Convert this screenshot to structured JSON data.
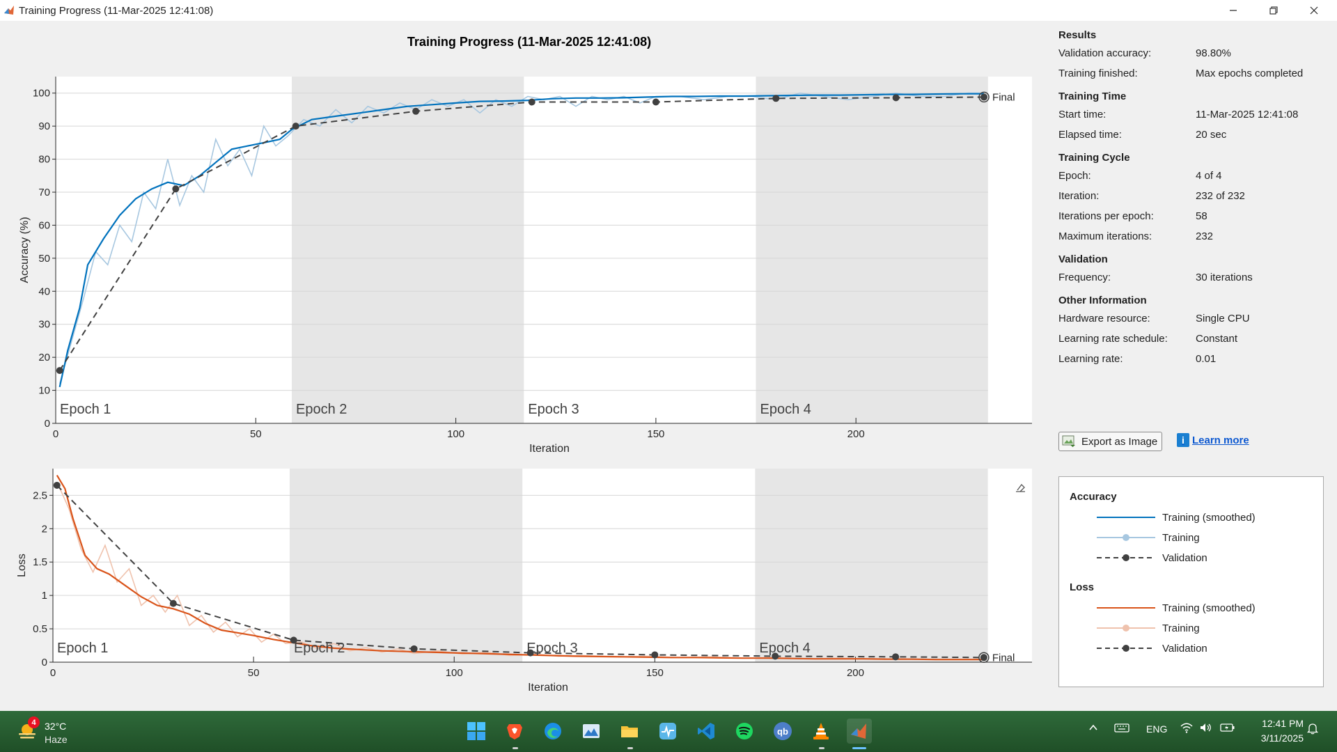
{
  "window": {
    "title": "Training Progress (11-Mar-2025 12:41:08)"
  },
  "plot": {
    "title": "Training Progress (11-Mar-2025 12:41:08)",
    "accuracy_ylabel": "Accuracy (%)",
    "loss_ylabel": "Loss",
    "xlabel": "Iteration",
    "epoch_labels": [
      "Epoch 1",
      "Epoch 2",
      "Epoch 3",
      "Epoch 4"
    ],
    "final_label": "Final"
  },
  "info": {
    "results": {
      "title": "Results",
      "val_acc_label": "Validation accuracy:",
      "val_acc": "98.80%",
      "finished_label": "Training finished:",
      "finished": "Max epochs completed"
    },
    "time": {
      "title": "Training Time",
      "start_label": "Start time:",
      "start": "11-Mar-2025 12:41:08",
      "elapsed_label": "Elapsed time:",
      "elapsed": "20 sec"
    },
    "cycle": {
      "title": "Training Cycle",
      "epoch_label": "Epoch:",
      "epoch": "4 of 4",
      "iter_label": "Iteration:",
      "iter": "232 of 232",
      "ipe_label": "Iterations per epoch:",
      "ipe": "58",
      "max_label": "Maximum iterations:",
      "max": "232"
    },
    "validation": {
      "title": "Validation",
      "freq_label": "Frequency:",
      "freq": "30 iterations"
    },
    "other": {
      "title": "Other Information",
      "hw_label": "Hardware resource:",
      "hw": "Single CPU",
      "lrs_label": "Learning rate schedule:",
      "lrs": "Constant",
      "lr_label": "Learning rate:",
      "lr": "0.01"
    }
  },
  "buttons": {
    "export": "Export as Image",
    "learn_more": "Learn more"
  },
  "legend": {
    "accuracy_title": "Accuracy",
    "loss_title": "Loss",
    "smoothed": "Training (smoothed)",
    "training": "Training",
    "validation": "Validation"
  },
  "colors": {
    "acc_smooth": "#0072bd",
    "acc_raw": "#a7c7e0",
    "loss_smooth": "#d95319",
    "loss_raw": "#efc2ad",
    "validation": "#404040",
    "epoch_shade": "#e6e6e6"
  },
  "taskbar": {
    "weather_temp": "32°C",
    "weather_desc": "Haze",
    "weather_badge": "4",
    "apps": [
      "start-icon",
      "brave-icon",
      "edge-icon",
      "photos-icon",
      "file-explorer-icon",
      "pulse-app-icon",
      "vscode-icon",
      "spotify-icon",
      "qbittorrent-icon",
      "vlc-icon",
      "matlab-icon"
    ],
    "lang": "ENG",
    "time": "12:41 PM",
    "date": "3/11/2025"
  },
  "chart_data": [
    {
      "type": "line",
      "title": "Training Progress (11-Mar-2025 12:41:08)",
      "xlabel": "Iteration",
      "ylabel": "Accuracy (%)",
      "xlim": [
        0,
        244
      ],
      "ylim": [
        0,
        105
      ],
      "xticks": [
        0,
        50,
        100,
        150,
        200
      ],
      "yticks": [
        0,
        10,
        20,
        30,
        40,
        50,
        60,
        70,
        80,
        90,
        100
      ],
      "epoch_boundaries": [
        0,
        59,
        117,
        175,
        233
      ],
      "epoch_labels": [
        "Epoch 1",
        "Epoch 2",
        "Epoch 3",
        "Epoch 4"
      ],
      "series": [
        {
          "name": "Training (smoothed)",
          "x": [
            1,
            3,
            6,
            8,
            12,
            16,
            20,
            24,
            28,
            32,
            36,
            40,
            44,
            48,
            52,
            56,
            59,
            64,
            70,
            76,
            82,
            88,
            94,
            100,
            106,
            112,
            118,
            124,
            130,
            136,
            142,
            148,
            154,
            160,
            166,
            172,
            178,
            184,
            190,
            196,
            202,
            208,
            214,
            220,
            226,
            232
          ],
          "y": [
            11,
            22,
            35,
            48,
            56,
            63,
            68,
            71,
            73,
            72,
            75,
            79,
            83,
            84,
            85,
            86,
            89,
            92,
            93,
            94,
            95,
            96,
            96.5,
            97,
            97.5,
            97.6,
            97.8,
            98.3,
            98.5,
            98.5,
            98.6,
            98.8,
            99,
            99,
            99.1,
            99.1,
            99.2,
            99.3,
            99.4,
            99.4,
            99.5,
            99.6,
            99.6,
            99.7,
            99.8,
            99.8
          ]
        },
        {
          "name": "Training",
          "x": [
            1,
            4,
            7,
            10,
            13,
            16,
            19,
            22,
            25,
            28,
            31,
            34,
            37,
            40,
            43,
            46,
            49,
            52,
            55,
            58,
            62,
            66,
            70,
            74,
            78,
            82,
            86,
            90,
            94,
            98,
            102,
            106,
            110,
            114,
            118,
            122,
            126,
            130,
            134,
            138,
            142,
            146,
            150,
            156,
            162,
            168,
            174,
            180,
            186,
            192,
            198,
            204,
            210,
            216,
            222,
            228,
            232
          ],
          "y": [
            12,
            25,
            38,
            52,
            48,
            60,
            55,
            70,
            65,
            80,
            66,
            75,
            70,
            86,
            78,
            83,
            75,
            90,
            84,
            87,
            92,
            90,
            95,
            91,
            96,
            94,
            97,
            95,
            98,
            96,
            98,
            94,
            98,
            96,
            99,
            98,
            99,
            96,
            99,
            98,
            99,
            97,
            99,
            99,
            98,
            99,
            99,
            98,
            100,
            99,
            98,
            99,
            100,
            99,
            99,
            100,
            100
          ]
        },
        {
          "name": "Validation",
          "x": [
            1,
            30,
            60,
            90,
            119,
            150,
            180,
            210,
            232
          ],
          "y": [
            16,
            71,
            90,
            94.5,
            97.3,
            97.3,
            98.4,
            98.6,
            98.8
          ]
        }
      ]
    },
    {
      "type": "line",
      "xlabel": "Iteration",
      "ylabel": "Loss",
      "xlim": [
        0,
        244
      ],
      "ylim": [
        0,
        2.9
      ],
      "xticks": [
        0,
        50,
        100,
        150,
        200
      ],
      "yticks": [
        0,
        0.5,
        1,
        1.5,
        2,
        2.5
      ],
      "epoch_boundaries": [
        0,
        59,
        117,
        175,
        233
      ],
      "epoch_labels": [
        "Epoch 1",
        "Epoch 2",
        "Epoch 3",
        "Epoch 4"
      ],
      "series": [
        {
          "name": "Training (smoothed)",
          "x": [
            1,
            3,
            5,
            8,
            11,
            14,
            18,
            22,
            26,
            30,
            34,
            38,
            42,
            46,
            50,
            55,
            59,
            64,
            70,
            76,
            82,
            88,
            94,
            100,
            106,
            112,
            118,
            124,
            130,
            136,
            142,
            148,
            154,
            160,
            166,
            172,
            178,
            184,
            190,
            196,
            202,
            208,
            214,
            220,
            226,
            232
          ],
          "y": [
            2.8,
            2.6,
            2.15,
            1.6,
            1.4,
            1.32,
            1.15,
            0.98,
            0.85,
            0.8,
            0.72,
            0.58,
            0.48,
            0.44,
            0.4,
            0.34,
            0.3,
            0.25,
            0.21,
            0.19,
            0.17,
            0.16,
            0.15,
            0.14,
            0.13,
            0.12,
            0.11,
            0.1,
            0.09,
            0.085,
            0.08,
            0.075,
            0.07,
            0.07,
            0.065,
            0.06,
            0.06,
            0.055,
            0.05,
            0.05,
            0.05,
            0.045,
            0.045,
            0.04,
            0.04,
            0.04
          ]
        },
        {
          "name": "Training",
          "x": [
            1,
            4,
            7,
            10,
            13,
            16,
            19,
            22,
            25,
            28,
            31,
            34,
            37,
            40,
            43,
            46,
            49,
            52,
            55,
            58,
            62,
            66,
            70,
            74,
            78,
            82,
            86,
            90,
            96,
            102,
            108,
            114,
            120,
            126,
            132,
            140,
            148,
            156,
            164,
            172,
            180,
            188,
            196,
            204,
            212,
            220,
            228,
            232
          ],
          "y": [
            2.7,
            2.3,
            1.7,
            1.35,
            1.75,
            1.2,
            1.4,
            0.85,
            1.0,
            0.75,
            1.0,
            0.55,
            0.7,
            0.45,
            0.6,
            0.38,
            0.5,
            0.3,
            0.42,
            0.28,
            0.3,
            0.2,
            0.28,
            0.17,
            0.22,
            0.15,
            0.2,
            0.13,
            0.17,
            0.12,
            0.15,
            0.1,
            0.12,
            0.09,
            0.1,
            0.08,
            0.09,
            0.07,
            0.08,
            0.06,
            0.07,
            0.05,
            0.06,
            0.05,
            0.05,
            0.04,
            0.04,
            0.04
          ]
        },
        {
          "name": "Validation",
          "x": [
            1,
            30,
            60,
            90,
            119,
            150,
            180,
            210,
            232
          ],
          "y": [
            2.65,
            0.88,
            0.33,
            0.2,
            0.14,
            0.11,
            0.09,
            0.08,
            0.07
          ]
        }
      ]
    }
  ]
}
